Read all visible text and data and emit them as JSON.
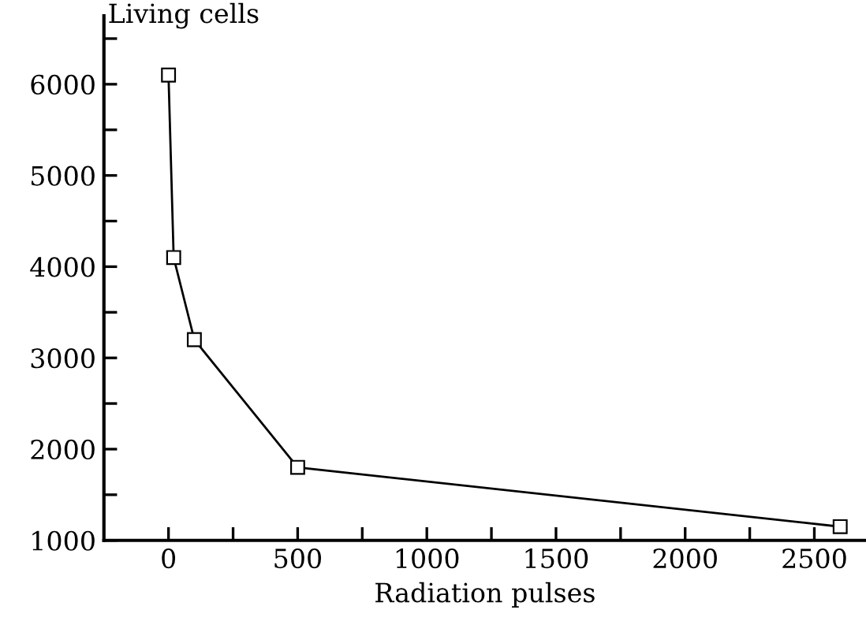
{
  "chart_data": {
    "type": "line",
    "xlabel": "Radiation pulses",
    "ylabel": "Living cells",
    "x": [
      0,
      20,
      100,
      500,
      2600
    ],
    "series": [
      {
        "color": "#000000",
        "values": [
          6100,
          4100,
          3200,
          1800,
          1150
        ]
      }
    ],
    "marker": "square",
    "line_style": "solid",
    "grid": false,
    "legend": false,
    "xlim": [
      -250,
      2700
    ],
    "ylim": [
      1000,
      6750
    ],
    "xticks": [
      0,
      {
        "value": 250,
        "label": null
      },
      500,
      {
        "value": 750,
        "label": null
      },
      1000,
      {
        "value": 1250,
        "label": null
      },
      1500,
      {
        "value": 1750,
        "label": null
      },
      2000,
      {
        "value": 2250,
        "label": null
      },
      2500
    ],
    "yticks": [
      1000,
      {
        "value": 1500,
        "label": null
      },
      2000,
      {
        "value": 2500,
        "label": null
      },
      3000,
      {
        "value": 3500,
        "label": null
      },
      4000,
      {
        "value": 4500,
        "label": null
      },
      5000,
      {
        "value": 5500,
        "label": null
      },
      6000,
      {
        "value": 6500,
        "label": null
      }
    ]
  }
}
